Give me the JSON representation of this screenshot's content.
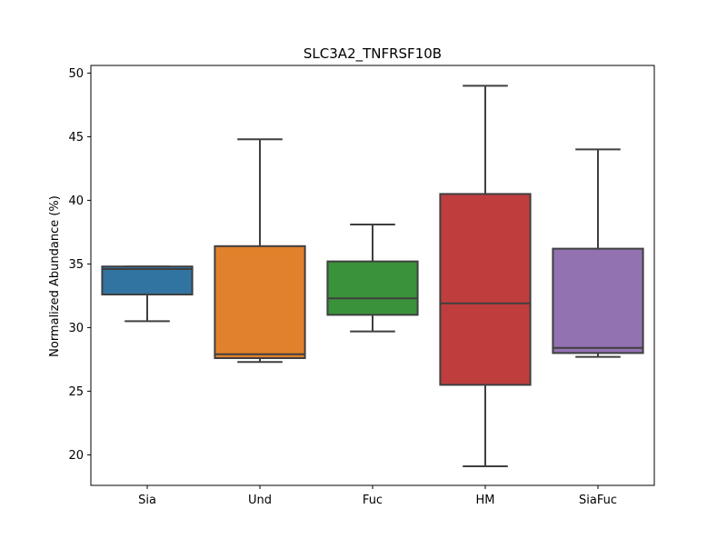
{
  "chart_data": {
    "type": "box",
    "title": "SLC3A2_TNFRSF10B",
    "xlabel": "",
    "ylabel": "Normalized Abundance (%)",
    "ylim": [
      17.6,
      50.6
    ],
    "yticks": [
      20,
      25,
      30,
      35,
      40,
      45,
      50
    ],
    "grid": false,
    "legend": "none",
    "categories": [
      "Sia",
      "Und",
      "Fuc",
      "HM",
      "SiaFuc"
    ],
    "boxes": [
      {
        "category": "Sia",
        "whisker_low": 30.5,
        "q1": 32.6,
        "median": 34.6,
        "q3": 34.8,
        "whisker_high": 34.8,
        "color": "#3274a1"
      },
      {
        "category": "Und",
        "whisker_low": 27.3,
        "q1": 27.6,
        "median": 27.9,
        "q3": 36.4,
        "whisker_high": 44.8,
        "color": "#e1812c"
      },
      {
        "category": "Fuc",
        "whisker_low": 29.7,
        "q1": 31.0,
        "median": 32.3,
        "q3": 35.2,
        "whisker_high": 38.1,
        "color": "#3a923a"
      },
      {
        "category": "HM",
        "whisker_low": 19.1,
        "q1": 25.5,
        "median": 31.9,
        "q3": 40.5,
        "whisker_high": 49.0,
        "color": "#c03d3e"
      },
      {
        "category": "SiaFuc",
        "whisker_low": 27.7,
        "q1": 28.0,
        "median": 28.4,
        "q3": 36.2,
        "whisker_high": 44.0,
        "color": "#9372b2"
      }
    ]
  }
}
